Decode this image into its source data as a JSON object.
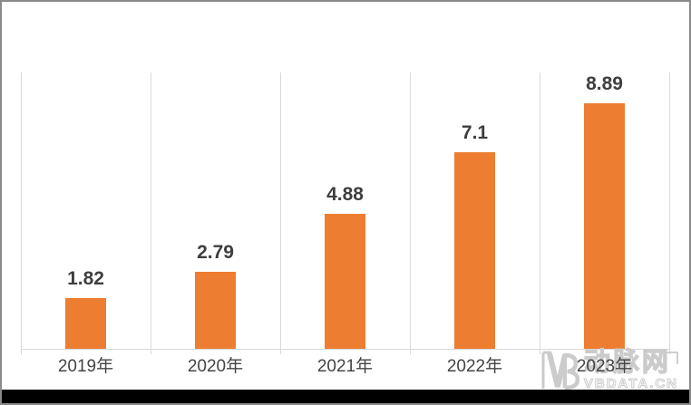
{
  "chart_data": {
    "type": "bar",
    "title": "",
    "xlabel": "",
    "ylabel": "",
    "categories": [
      "2019年",
      "2020年",
      "2021年",
      "2022年",
      "2023年"
    ],
    "values": [
      1.82,
      2.79,
      4.88,
      7.1,
      8.89
    ],
    "value_labels": [
      "1.82",
      "2.79",
      "4.88",
      "7.1",
      "8.89"
    ],
    "ylim": [
      0,
      10
    ],
    "grid": "vertical-category-separators-only",
    "legend_position": "none",
    "bar_color": "#ed7d31",
    "value_label_color": "#3e3e3e",
    "tick_label_color": "#444444",
    "axis_line_color": "#d9d9d9"
  },
  "watermark": {
    "logo": "VB",
    "cn_text": "动脉网",
    "latin_text": "VBDATA.CN",
    "color": "#cbcbcb"
  },
  "frame": {
    "border_color": "#8a8a8a",
    "bottom_bar_color": "#000000",
    "background_color": "#ffffff"
  }
}
